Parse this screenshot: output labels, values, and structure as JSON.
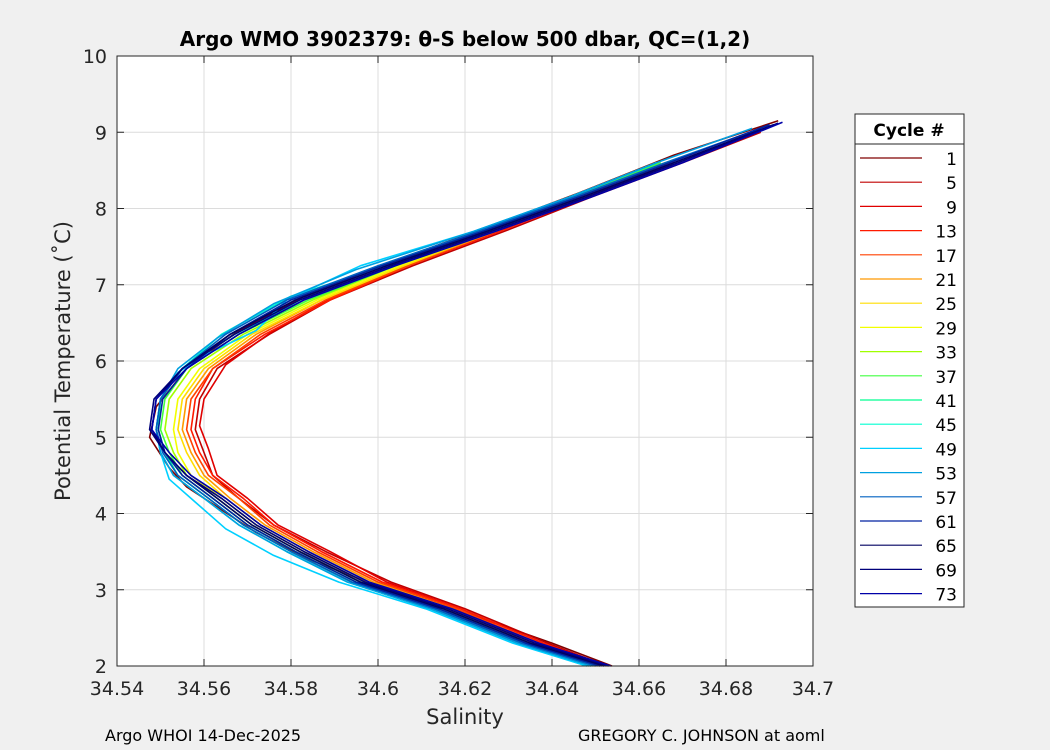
{
  "footer": {
    "left": "Argo WHOI 14-Dec-2025",
    "right": "GREGORY C. JOHNSON at aoml"
  },
  "chart_data": {
    "type": "line",
    "title": "Argo WMO 3902379: θ-S below 500 dbar,  QC=(1,2)",
    "xlabel": "Salinity",
    "ylabel": "Potential Temperature (˚C)",
    "xlim": [
      34.54,
      34.7
    ],
    "ylim": [
      2,
      10
    ],
    "xticks": [
      34.54,
      34.56,
      34.58,
      34.6,
      34.62,
      34.64,
      34.66,
      34.68,
      34.7
    ],
    "xtick_labels": [
      "34.54",
      "34.56",
      "34.58",
      "34.6",
      "34.62",
      "34.64",
      "34.66",
      "34.68",
      "34.7"
    ],
    "yticks": [
      2,
      3,
      4,
      5,
      6,
      7,
      8,
      9,
      10
    ],
    "ytick_labels": [
      "2",
      "3",
      "4",
      "5",
      "6",
      "7",
      "8",
      "9",
      "10"
    ],
    "grid": true,
    "legend": {
      "title": "Cycle #",
      "placement": "right"
    },
    "series": [
      {
        "name": "1",
        "color": "#800000",
        "x": [
          34.6538,
          34.64,
          34.62,
          34.6,
          34.584,
          34.572,
          34.564,
          34.556,
          34.552,
          34.5475,
          34.549,
          34.556,
          34.568,
          34.583,
          34.603,
          34.625,
          34.646,
          34.668,
          34.692
        ],
        "y": [
          2.0,
          2.3,
          2.7,
          3.05,
          3.4,
          3.75,
          4.05,
          4.35,
          4.6,
          5.0,
          5.4,
          5.9,
          6.4,
          6.85,
          7.3,
          7.75,
          8.2,
          8.7,
          9.15
        ]
      },
      {
        "name": "5",
        "color": "#c00000",
        "x": [
          34.6525,
          34.639,
          34.62,
          34.603,
          34.588,
          34.576,
          34.568,
          34.562,
          34.56,
          34.558,
          34.559,
          34.563,
          34.575,
          34.589,
          34.608,
          34.629,
          34.649,
          34.67,
          34.688
        ],
        "y": [
          2.0,
          2.3,
          2.75,
          3.1,
          3.5,
          3.85,
          4.2,
          4.5,
          4.8,
          5.1,
          5.5,
          5.9,
          6.35,
          6.8,
          7.25,
          7.7,
          8.15,
          8.6,
          9.0
        ]
      },
      {
        "name": "9",
        "color": "#e00000",
        "x": [
          34.653,
          34.638,
          34.619,
          34.602,
          34.589,
          34.577,
          34.57,
          34.563,
          34.561,
          34.559,
          34.56,
          34.565,
          34.576,
          34.59,
          34.609,
          34.629,
          34.649,
          34.669
        ],
        "y": [
          2.0,
          2.3,
          2.75,
          3.1,
          3.5,
          3.85,
          4.2,
          4.5,
          4.85,
          5.15,
          5.5,
          5.95,
          6.4,
          6.85,
          7.3,
          7.75,
          8.2,
          8.65
        ]
      },
      {
        "name": "13",
        "color": "#ff1a00",
        "x": [
          34.652,
          34.638,
          34.619,
          34.601,
          34.587,
          34.576,
          34.569,
          34.562,
          34.559,
          34.557,
          34.558,
          34.562,
          34.574,
          34.589,
          34.607,
          34.628,
          34.648,
          34.668
        ],
        "y": [
          2.0,
          2.3,
          2.75,
          3.1,
          3.5,
          3.85,
          4.2,
          4.5,
          4.8,
          5.1,
          5.5,
          5.9,
          6.35,
          6.8,
          7.25,
          7.7,
          8.15,
          8.6
        ]
      },
      {
        "name": "17",
        "color": "#ff4000",
        "x": [
          34.6515,
          34.637,
          34.618,
          34.6,
          34.586,
          34.575,
          34.568,
          34.561,
          34.558,
          34.556,
          34.557,
          34.562,
          34.573,
          34.588,
          34.607,
          34.627,
          34.647,
          34.667
        ],
        "y": [
          2.0,
          2.3,
          2.75,
          3.1,
          3.5,
          3.85,
          4.2,
          4.5,
          4.8,
          5.1,
          5.5,
          5.9,
          6.35,
          6.8,
          7.25,
          7.7,
          8.15,
          8.6
        ]
      },
      {
        "name": "21",
        "color": "#ff9900",
        "x": [
          34.651,
          34.636,
          34.617,
          34.599,
          34.585,
          34.574,
          34.566,
          34.56,
          34.557,
          34.555,
          34.556,
          34.561,
          34.572,
          34.587,
          34.606,
          34.627,
          34.647,
          34.667
        ],
        "y": [
          2.0,
          2.3,
          2.75,
          3.1,
          3.5,
          3.85,
          4.2,
          4.5,
          4.8,
          5.1,
          5.5,
          5.9,
          6.35,
          6.8,
          7.25,
          7.7,
          8.15,
          8.6
        ]
      },
      {
        "name": "25",
        "color": "#ffdd00",
        "x": [
          34.6505,
          34.635,
          34.616,
          34.598,
          34.584,
          34.573,
          34.565,
          34.559,
          34.556,
          34.554,
          34.555,
          34.56,
          34.571,
          34.587,
          34.606,
          34.626,
          34.646,
          34.666
        ],
        "y": [
          2.0,
          2.3,
          2.75,
          3.1,
          3.5,
          3.85,
          4.2,
          4.5,
          4.8,
          5.1,
          5.5,
          5.9,
          6.35,
          6.8,
          7.25,
          7.7,
          8.15,
          8.6
        ]
      },
      {
        "name": "29",
        "color": "#f2ff00",
        "x": [
          34.65,
          34.635,
          34.615,
          34.597,
          34.583,
          34.572,
          34.564,
          34.557,
          34.554,
          34.553,
          34.554,
          34.559,
          34.57,
          34.586,
          34.605,
          34.626,
          34.646,
          34.666
        ],
        "y": [
          2.0,
          2.3,
          2.75,
          3.1,
          3.5,
          3.85,
          4.2,
          4.5,
          4.8,
          5.1,
          5.5,
          5.9,
          6.35,
          6.8,
          7.25,
          7.7,
          8.15,
          8.6
        ]
      },
      {
        "name": "33",
        "color": "#a0ff00",
        "x": [
          34.6495,
          34.634,
          34.615,
          34.596,
          34.582,
          34.571,
          34.563,
          34.556,
          34.553,
          34.551,
          34.552,
          34.557,
          34.569,
          34.585,
          34.604,
          34.625,
          34.645,
          34.665
        ],
        "y": [
          2.0,
          2.3,
          2.75,
          3.1,
          3.5,
          3.85,
          4.2,
          4.5,
          4.8,
          5.1,
          5.5,
          5.9,
          6.35,
          6.8,
          7.25,
          7.7,
          8.15,
          8.6
        ]
      },
      {
        "name": "37",
        "color": "#40ff40",
        "x": [
          34.649,
          34.634,
          34.614,
          34.595,
          34.581,
          34.57,
          34.562,
          34.555,
          34.552,
          34.55,
          34.551,
          34.556,
          34.568,
          34.584,
          34.604,
          34.625,
          34.645,
          34.665
        ],
        "y": [
          2.0,
          2.3,
          2.75,
          3.1,
          3.5,
          3.85,
          4.2,
          4.5,
          4.8,
          5.1,
          5.5,
          5.9,
          6.35,
          6.8,
          7.25,
          7.7,
          8.15,
          8.6
        ]
      },
      {
        "name": "41",
        "color": "#00ff90",
        "x": [
          34.6485,
          34.633,
          34.613,
          34.594,
          34.58,
          34.569,
          34.561,
          34.554,
          34.551,
          34.5495,
          34.55,
          34.555,
          34.567,
          34.583,
          34.603,
          34.624,
          34.644,
          34.664
        ],
        "y": [
          2.0,
          2.3,
          2.75,
          3.1,
          3.5,
          3.85,
          4.2,
          4.5,
          4.8,
          5.1,
          5.5,
          5.9,
          6.35,
          6.8,
          7.25,
          7.7,
          8.15,
          8.6
        ]
      },
      {
        "name": "45",
        "color": "#00ffd0",
        "x": [
          34.648,
          34.632,
          34.612,
          34.593,
          34.579,
          34.568,
          34.56,
          34.553,
          34.55,
          34.549,
          34.55,
          34.555,
          34.564,
          34.58,
          34.602,
          34.623,
          34.644,
          34.664
        ],
        "y": [
          2.0,
          2.3,
          2.75,
          3.1,
          3.5,
          3.85,
          4.2,
          4.5,
          4.8,
          5.1,
          5.5,
          5.9,
          6.35,
          6.85,
          7.25,
          7.7,
          8.15,
          8.6
        ]
      },
      {
        "name": "49",
        "color": "#00d0ff",
        "x": [
          34.648,
          34.631,
          34.611,
          34.591,
          34.576,
          34.565,
          34.558,
          34.552,
          34.55,
          34.549,
          34.55,
          34.554,
          34.561,
          34.572,
          34.579,
          34.596,
          34.622,
          34.644,
          34.664
        ],
        "y": [
          2.0,
          2.3,
          2.75,
          3.1,
          3.45,
          3.8,
          4.15,
          4.45,
          4.8,
          5.1,
          5.5,
          5.85,
          6.1,
          6.4,
          6.8,
          7.25,
          7.7,
          8.15,
          8.6
        ]
      },
      {
        "name": "53",
        "color": "#00a0e0",
        "x": [
          34.649,
          34.632,
          34.612,
          34.593,
          34.579,
          34.568,
          34.56,
          34.553,
          34.55,
          34.549,
          34.55,
          34.554,
          34.563,
          34.576,
          34.595,
          34.622,
          34.644,
          34.664,
          34.686
        ],
        "y": [
          2.0,
          2.3,
          2.75,
          3.1,
          3.5,
          3.85,
          4.2,
          4.5,
          4.8,
          5.1,
          5.5,
          5.9,
          6.3,
          6.75,
          7.2,
          7.7,
          8.15,
          8.6,
          9.05
        ]
      },
      {
        "name": "57",
        "color": "#0060c0",
        "x": [
          34.65,
          34.633,
          34.613,
          34.594,
          34.58,
          34.569,
          34.561,
          34.554,
          34.5505,
          34.549,
          34.55,
          34.555,
          34.565,
          34.579,
          34.6,
          34.623,
          34.645,
          34.666,
          34.688
        ],
        "y": [
          2.0,
          2.3,
          2.75,
          3.1,
          3.5,
          3.85,
          4.2,
          4.5,
          4.8,
          5.1,
          5.5,
          5.9,
          6.35,
          6.8,
          7.25,
          7.7,
          8.15,
          8.6,
          9.05
        ]
      },
      {
        "name": "61",
        "color": "#0020a0",
        "x": [
          34.651,
          34.634,
          34.614,
          34.595,
          34.581,
          34.57,
          34.562,
          34.555,
          34.551,
          34.5495,
          34.5505,
          34.556,
          34.566,
          34.58,
          34.601,
          34.624,
          34.646,
          34.667,
          34.69
        ],
        "y": [
          2.0,
          2.3,
          2.75,
          3.1,
          3.5,
          3.85,
          4.2,
          4.5,
          4.8,
          5.1,
          5.5,
          5.9,
          6.35,
          6.8,
          7.25,
          7.7,
          8.15,
          8.6,
          9.1
        ]
      },
      {
        "name": "65",
        "color": "#000060",
        "x": [
          34.652,
          34.635,
          34.615,
          34.596,
          34.582,
          34.571,
          34.563,
          34.556,
          34.551,
          34.548,
          34.549,
          34.555,
          34.566,
          34.581,
          34.602,
          34.625,
          34.647,
          34.668,
          34.691
        ],
        "y": [
          2.0,
          2.3,
          2.75,
          3.1,
          3.5,
          3.85,
          4.2,
          4.5,
          4.8,
          5.1,
          5.5,
          5.9,
          6.35,
          6.8,
          7.25,
          7.7,
          8.15,
          8.6,
          9.1
        ]
      },
      {
        "name": "69",
        "color": "#00007a",
        "x": [
          34.653,
          34.636,
          34.616,
          34.597,
          34.583,
          34.572,
          34.564,
          34.556,
          34.551,
          34.5475,
          34.5485,
          34.555,
          34.567,
          34.582,
          34.603,
          34.626,
          34.648,
          34.669,
          34.692
        ],
        "y": [
          2.0,
          2.3,
          2.75,
          3.1,
          3.5,
          3.85,
          4.2,
          4.5,
          4.8,
          5.1,
          5.5,
          5.9,
          6.35,
          6.8,
          7.25,
          7.7,
          8.15,
          8.6,
          9.12
        ]
      },
      {
        "name": "73",
        "color": "#0000a8",
        "x": [
          34.6535,
          34.637,
          34.617,
          34.598,
          34.584,
          34.573,
          34.565,
          34.557,
          34.552,
          34.548,
          34.549,
          34.556,
          34.568,
          34.583,
          34.604,
          34.627,
          34.649,
          34.67,
          34.693
        ],
        "y": [
          2.0,
          2.3,
          2.75,
          3.1,
          3.5,
          3.85,
          4.2,
          4.5,
          4.8,
          5.1,
          5.5,
          5.9,
          6.35,
          6.8,
          7.25,
          7.7,
          8.15,
          8.6,
          9.13
        ]
      }
    ]
  }
}
